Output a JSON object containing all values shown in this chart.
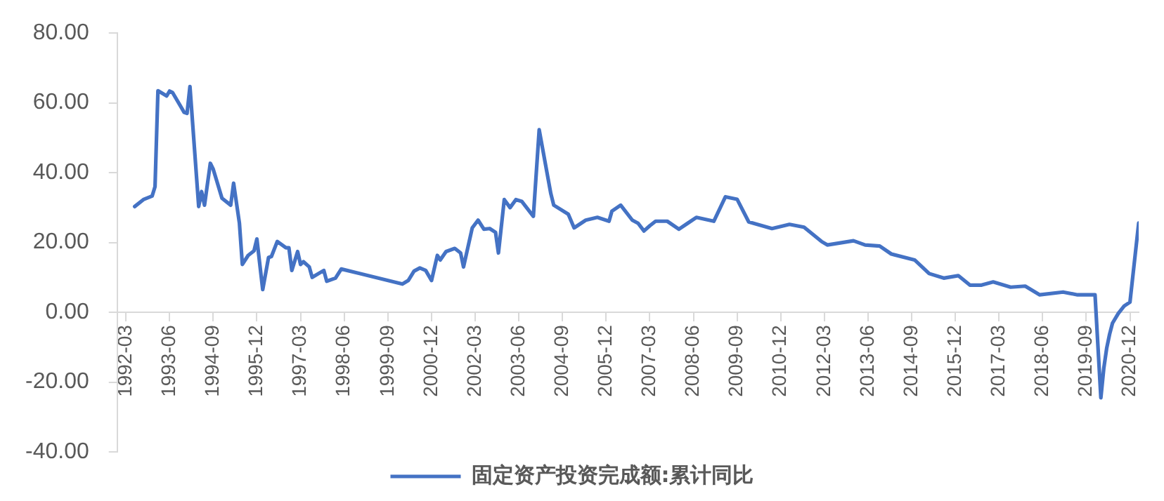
{
  "chart_data": {
    "type": "line",
    "legend": "bottom",
    "grid": false,
    "marker": "none",
    "line_style": "solid",
    "xlim": [
      "1991-12",
      "2021-03"
    ],
    "ylim": [
      -40,
      80
    ],
    "xticks": [
      "1992-03",
      "1993-06",
      "1994-09",
      "1995-12",
      "1997-03",
      "1998-06",
      "1999-09",
      "2000-12",
      "2002-03",
      "2003-06",
      "2004-09",
      "2005-12",
      "2007-03",
      "2008-06",
      "2009-09",
      "2010-12",
      "2012-03",
      "2013-06",
      "2014-09",
      "2015-12",
      "2017-03",
      "2018-06",
      "2019-09",
      "2020-12"
    ],
    "yticks": [
      {
        "value": 80,
        "label": "80.00"
      },
      {
        "value": 60,
        "label": "60.00"
      },
      {
        "value": 40,
        "label": "40.00"
      },
      {
        "value": 20,
        "label": "20.00"
      },
      {
        "value": 0,
        "label": "0.00"
      },
      {
        "value": -20,
        "label": "-20.00"
      },
      {
        "value": -40,
        "label": "-40.00"
      }
    ],
    "series": [
      {
        "name": "固定资产投资完成额:累计同比",
        "color": "#4472c4",
        "x": [
          "1992-06",
          "1992-09",
          "1992-12",
          "1993-01",
          "1993-02",
          "1993-05",
          "1993-06",
          "1993-07",
          "1993-11",
          "1993-12",
          "1994-01",
          "1994-04",
          "1994-05",
          "1994-06",
          "1994-08",
          "1994-09",
          "1994-12",
          "1995-03",
          "1995-04",
          "1995-06",
          "1995-07",
          "1995-09",
          "1995-11",
          "1995-12",
          "1996-02",
          "1996-04",
          "1996-05",
          "1996-07",
          "1996-10",
          "1996-11",
          "1996-12",
          "1997-02",
          "1997-03",
          "1997-04",
          "1997-06",
          "1997-07",
          "1997-11",
          "1997-12",
          "1998-03",
          "1998-05",
          "2000-02",
          "2000-04",
          "2000-06",
          "2000-08",
          "2000-10",
          "2000-12",
          "2001-02",
          "2001-03",
          "2001-05",
          "2001-08",
          "2001-10",
          "2001-11",
          "2002-02",
          "2002-04",
          "2002-06",
          "2002-08",
          "2002-10",
          "2002-11",
          "2003-01",
          "2003-03",
          "2003-05",
          "2003-07",
          "2003-11",
          "2004-01",
          "2004-05",
          "2004-06",
          "2004-11",
          "2005-01",
          "2005-05",
          "2005-09",
          "2006-01",
          "2006-02",
          "2006-05",
          "2006-09",
          "2006-11",
          "2007-01",
          "2007-03",
          "2007-05",
          "2007-09",
          "2008-01",
          "2008-04",
          "2008-07",
          "2009-01",
          "2009-05",
          "2009-09",
          "2010-01",
          "2010-09",
          "2011-03",
          "2011-08",
          "2012-02",
          "2012-04",
          "2013-01",
          "2013-05",
          "2013-10",
          "2014-02",
          "2014-10",
          "2015-03",
          "2015-08",
          "2016-01",
          "2016-05",
          "2016-09",
          "2017-01",
          "2017-07",
          "2017-12",
          "2018-05",
          "2019-01",
          "2019-06",
          "2019-12",
          "2020-02",
          "2020-03",
          "2020-04",
          "2020-05",
          "2020-06",
          "2020-08",
          "2020-10",
          "2020-12",
          "2021-03"
        ],
        "values": [
          30.3,
          32.3,
          33.3,
          36,
          63.5,
          62,
          63.4,
          63,
          57.3,
          57,
          64.7,
          30.3,
          34.6,
          30.7,
          42.7,
          41,
          32.7,
          30.7,
          37,
          25.5,
          13.7,
          16.3,
          17.6,
          21,
          6.5,
          15.7,
          16,
          20.3,
          18.5,
          18.5,
          12,
          17.4,
          13.7,
          14.5,
          13,
          10,
          12,
          8.9,
          9.8,
          12.4,
          8.1,
          9.1,
          11.8,
          12.7,
          12,
          9.1,
          16.3,
          15,
          17.4,
          18.3,
          17,
          13,
          24.2,
          26.4,
          23.8,
          24,
          22.9,
          17,
          32.3,
          30,
          32.3,
          31.8,
          27.5,
          52.3,
          34,
          30.7,
          28.1,
          24.2,
          26.4,
          27.2,
          26.1,
          29,
          30.7,
          26.4,
          25.5,
          23.3,
          24.8,
          26.1,
          26.1,
          23.8,
          25.5,
          27.2,
          26.1,
          33.1,
          32.4,
          25.9,
          24,
          25.2,
          24.4,
          20.3,
          19.3,
          20.5,
          19.3,
          19,
          16.7,
          15,
          11.1,
          9.8,
          10.5,
          7.8,
          7.8,
          8.7,
          7.2,
          7.5,
          5,
          5.8,
          5,
          5,
          -24.5,
          -16.1,
          -10.3,
          -6.3,
          -3.1,
          -0.3,
          1.8,
          2.9,
          25.6
        ]
      }
    ]
  }
}
